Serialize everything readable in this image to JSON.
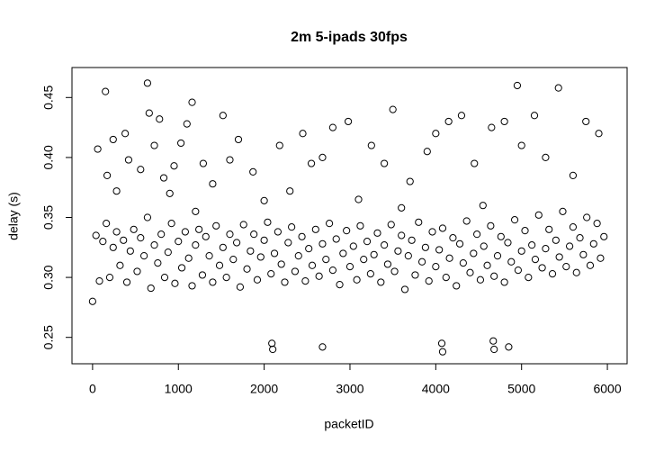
{
  "chart_data": {
    "type": "scatter",
    "title": "2m 5-ipads 30fps",
    "x_label": "packetID",
    "y_label": "delay (s)",
    "color": "#000000",
    "xlim": [
      -240,
      6230
    ],
    "xticks": [
      0,
      1000,
      2000,
      3000,
      4000,
      5000,
      6000
    ],
    "ylim": [
      0.228,
      0.475
    ],
    "yticks": [
      0.25,
      {
        "value": 0.3,
        "label": "0.30"
      },
      0.35,
      {
        "value": 0.4,
        "label": "0.40"
      },
      0.45
    ],
    "x": [
      0,
      40,
      80,
      120,
      160,
      200,
      240,
      280,
      320,
      360,
      400,
      440,
      480,
      520,
      560,
      600,
      640,
      680,
      720,
      760,
      800,
      840,
      880,
      920,
      960,
      1000,
      1040,
      1080,
      1120,
      1160,
      1200,
      1240,
      1280,
      1320,
      1360,
      1400,
      1440,
      1480,
      1520,
      1560,
      1600,
      1640,
      1680,
      1720,
      1760,
      1800,
      1840,
      1880,
      1920,
      1960,
      2000,
      2040,
      2080,
      2120,
      2160,
      2200,
      2240,
      2280,
      2320,
      2360,
      2400,
      2440,
      2480,
      2520,
      2560,
      2600,
      2640,
      2680,
      2720,
      2760,
      2800,
      2840,
      2880,
      2920,
      2960,
      3000,
      3040,
      3080,
      3120,
      3160,
      3200,
      3240,
      3280,
      3320,
      3360,
      3400,
      3440,
      3480,
      3520,
      3560,
      3600,
      3640,
      3680,
      3720,
      3760,
      3800,
      3840,
      3880,
      3920,
      3960,
      4000,
      4040,
      4080,
      4120,
      4160,
      4200,
      4240,
      4280,
      4320,
      4360,
      4400,
      4440,
      4480,
      4520,
      4560,
      4600,
      4640,
      4680,
      4720,
      4760,
      4800,
      4840,
      4880,
      4920,
      4960,
      5000,
      5040,
      5080,
      5120,
      5160,
      5200,
      5240,
      5280,
      5320,
      5360,
      5400,
      5440,
      5480,
      5520,
      5560,
      5600,
      5640,
      5680,
      5720,
      5760,
      5800,
      5840,
      5880,
      5920,
      5960,
      60,
      150,
      170,
      240,
      280,
      380,
      420,
      560,
      640,
      660,
      720,
      780,
      830,
      900,
      950,
      1030,
      1100,
      1160,
      1290,
      1400,
      1520,
      1600,
      1700,
      1870,
      2000,
      2180,
      2300,
      2450,
      2550,
      2680,
      2800,
      2980,
      3100,
      3250,
      3400,
      3500,
      3700,
      3900,
      4000,
      4150,
      4300,
      4450,
      4650,
      4800,
      4950,
      5000,
      5150,
      5280,
      5430,
      5600,
      5750,
      5900,
      3600,
      1200,
      4550,
      2090,
      2100,
      2680,
      4070,
      4080,
      4670,
      4680,
      4850
    ],
    "values": [
      0.28,
      0.335,
      0.297,
      0.33,
      0.345,
      0.3,
      0.325,
      0.338,
      0.31,
      0.331,
      0.296,
      0.322,
      0.34,
      0.305,
      0.333,
      0.318,
      0.35,
      0.291,
      0.327,
      0.312,
      0.336,
      0.3,
      0.321,
      0.345,
      0.295,
      0.33,
      0.308,
      0.338,
      0.316,
      0.293,
      0.327,
      0.34,
      0.302,
      0.334,
      0.318,
      0.296,
      0.343,
      0.31,
      0.325,
      0.3,
      0.336,
      0.315,
      0.329,
      0.292,
      0.344,
      0.307,
      0.322,
      0.336,
      0.298,
      0.317,
      0.331,
      0.346,
      0.303,
      0.32,
      0.338,
      0.311,
      0.296,
      0.329,
      0.342,
      0.305,
      0.318,
      0.334,
      0.297,
      0.324,
      0.31,
      0.34,
      0.301,
      0.328,
      0.315,
      0.345,
      0.306,
      0.332,
      0.294,
      0.32,
      0.339,
      0.309,
      0.326,
      0.298,
      0.343,
      0.315,
      0.33,
      0.303,
      0.319,
      0.337,
      0.296,
      0.327,
      0.311,
      0.344,
      0.305,
      0.322,
      0.335,
      0.29,
      0.318,
      0.331,
      0.302,
      0.346,
      0.313,
      0.325,
      0.297,
      0.338,
      0.309,
      0.323,
      0.341,
      0.3,
      0.316,
      0.333,
      0.293,
      0.328,
      0.312,
      0.347,
      0.304,
      0.32,
      0.336,
      0.298,
      0.326,
      0.31,
      0.343,
      0.301,
      0.318,
      0.334,
      0.296,
      0.329,
      0.313,
      0.348,
      0.306,
      0.322,
      0.339,
      0.3,
      0.327,
      0.315,
      0.352,
      0.308,
      0.324,
      0.34,
      0.303,
      0.331,
      0.317,
      0.355,
      0.309,
      0.326,
      0.342,
      0.304,
      0.333,
      0.319,
      0.35,
      0.31,
      0.328,
      0.345,
      0.316,
      0.334,
      0.407,
      0.455,
      0.385,
      0.415,
      0.372,
      0.42,
      0.398,
      0.39,
      0.462,
      0.437,
      0.41,
      0.432,
      0.383,
      0.37,
      0.393,
      0.412,
      0.428,
      0.446,
      0.395,
      0.378,
      0.435,
      0.398,
      0.415,
      0.388,
      0.364,
      0.41,
      0.372,
      0.42,
      0.395,
      0.4,
      0.425,
      0.43,
      0.365,
      0.41,
      0.395,
      0.44,
      0.38,
      0.405,
      0.42,
      0.43,
      0.435,
      0.395,
      0.425,
      0.43,
      0.46,
      0.41,
      0.435,
      0.4,
      0.458,
      0.385,
      0.43,
      0.42,
      0.358,
      0.355,
      0.36,
      0.245,
      0.24,
      0.242,
      0.245,
      0.238,
      0.247,
      0.24,
      0.242
    ]
  }
}
